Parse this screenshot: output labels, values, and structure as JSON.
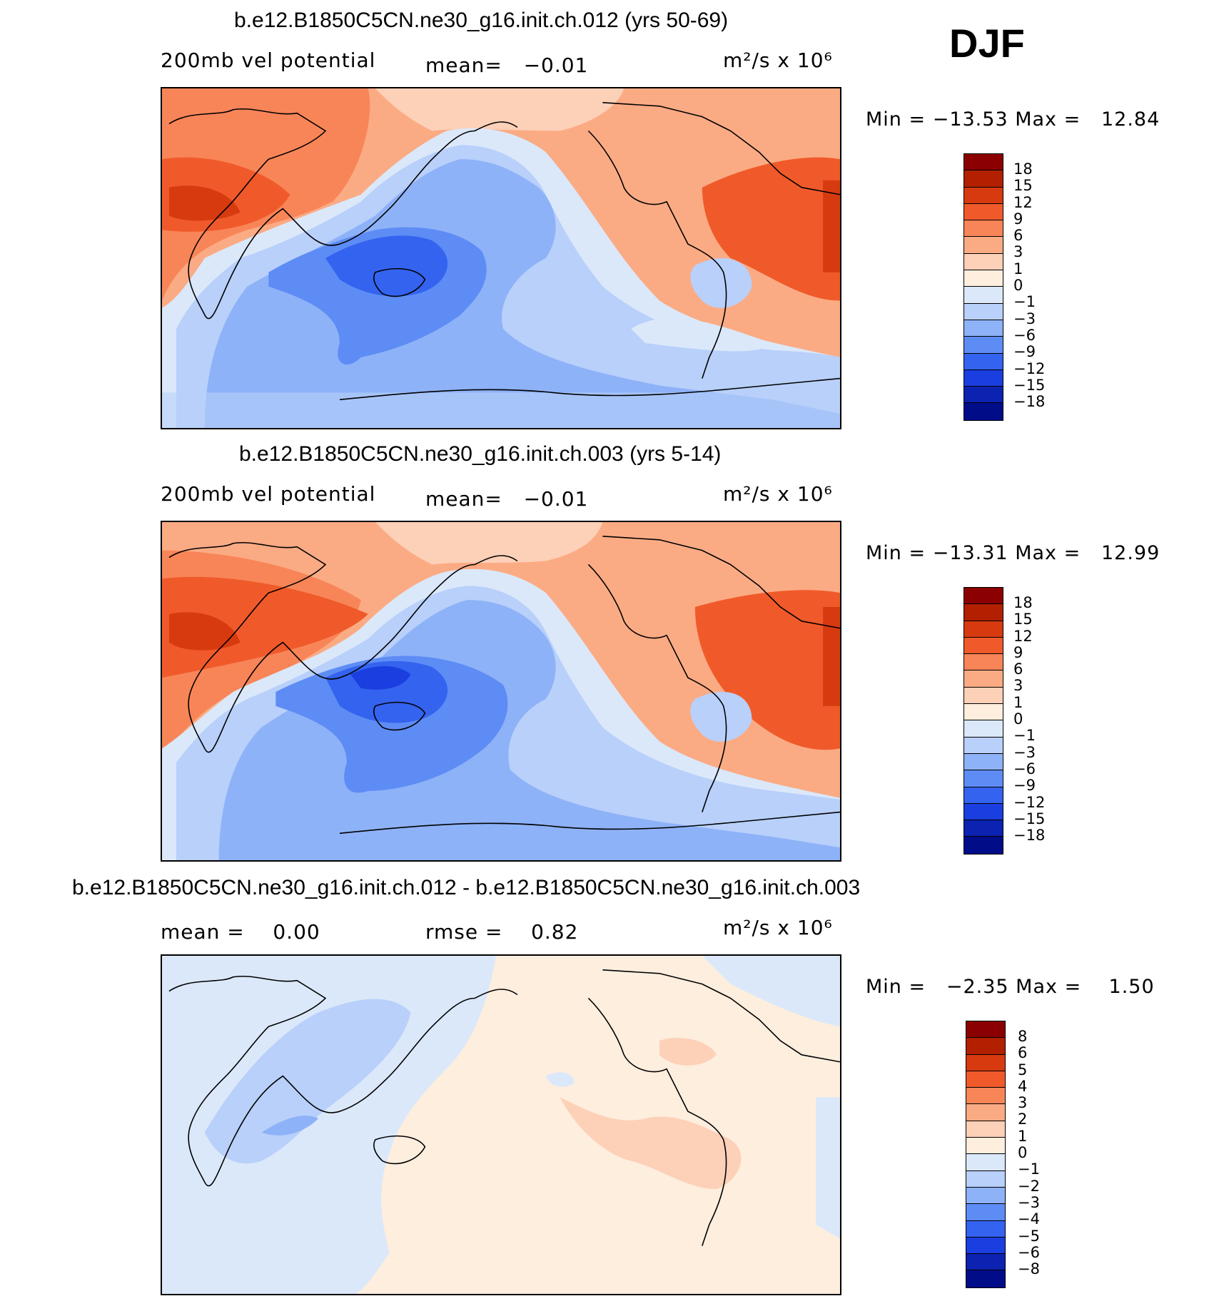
{
  "season": "DJF",
  "panels": [
    {
      "title": "b.e12.B1850C5CN.ne30_g16.init.ch.012 (yrs 50-69)",
      "left_label": "200mb vel potential",
      "center_label": "mean=   −0.01",
      "units": "m²/s x 10⁶",
      "minmax": "Min = −13.53 Max =   12.84",
      "colorbar_labels": [
        "18",
        "15",
        "12",
        "9",
        "6",
        "3",
        "1",
        "0",
        "−1",
        "−3",
        "−6",
        "−9",
        "−12",
        "−15",
        "−18"
      ]
    },
    {
      "title": "b.e12.B1850C5CN.ne30_g16.init.ch.003 (yrs 5-14)",
      "left_label": "200mb vel potential",
      "center_label": "mean=   −0.01",
      "units": "m²/s x 10⁶",
      "minmax": "Min = −13.31 Max =   12.99",
      "colorbar_labels": [
        "18",
        "15",
        "12",
        "9",
        "6",
        "3",
        "1",
        "0",
        "−1",
        "−3",
        "−6",
        "−9",
        "−12",
        "−15",
        "−18"
      ]
    },
    {
      "title": "b.e12.B1850C5CN.ne30_g16.init.ch.012 - b.e12.B1850C5CN.ne30_g16.init.ch.003",
      "left_label": "mean =    0.00",
      "center_label": "rmse =    0.82",
      "units": "m²/s x 10⁶",
      "minmax": "Min =   −2.35 Max =    1.50",
      "colorbar_labels": [
        "8",
        "6",
        "5",
        "4",
        "3",
        "2",
        "1",
        "0",
        "−1",
        "−2",
        "−3",
        "−4",
        "−5",
        "−6",
        "−8"
      ]
    }
  ],
  "colors": {
    "scale": [
      "#8b0000",
      "#b22000",
      "#d83a10",
      "#f05a2a",
      "#f88558",
      "#fbab84",
      "#fdd0b8",
      "#fdeede",
      "#dbe8fa",
      "#b8d0fa",
      "#8eb2f8",
      "#5e8cf5",
      "#3463ef",
      "#1a3ee0",
      "#0c22b0",
      "#000c88"
    ]
  }
}
